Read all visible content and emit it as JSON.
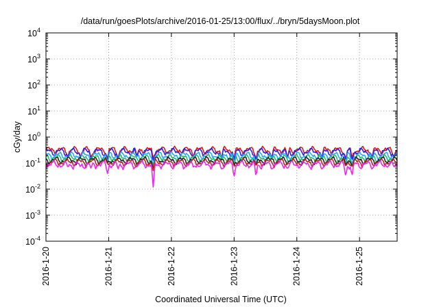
{
  "chart_data": {
    "type": "line",
    "title": "/data/run/goesPlots/archive/2016-01-25/13:00/flux/../bryn/5daysMoon.plot",
    "xlabel": "Coordinated Universal Time (UTC)",
    "ylabel": "cGy/day",
    "yscale": "log",
    "ylim": [
      0.0001,
      10000
    ],
    "xlim": [
      0,
      5.6
    ],
    "grid": true,
    "x_ticks": [
      "2016-1-20",
      "2016-1-21",
      "2016-1-22",
      "2016-1-23",
      "2016-1-24",
      "2016-1-25"
    ],
    "y_ticks": [
      {
        "base": "10",
        "exp": "-4",
        "value": 0.0001
      },
      {
        "base": "10",
        "exp": "-3",
        "value": 0.001
      },
      {
        "base": "10",
        "exp": "-2",
        "value": 0.01
      },
      {
        "base": "10",
        "exp": "-1",
        "value": 0.1
      },
      {
        "base": "10",
        "exp": "0",
        "value": 1
      },
      {
        "base": "10",
        "exp": "1",
        "value": 10
      },
      {
        "base": "10",
        "exp": "2",
        "value": 100
      },
      {
        "base": "10",
        "exp": "3",
        "value": 1000
      },
      {
        "base": "10",
        "exp": "4",
        "value": 10000
      }
    ],
    "series": [
      {
        "color": "#ee1111",
        "base": 0.32
      },
      {
        "color": "#2222ee",
        "base": 0.28
      },
      {
        "color": "#22aaff",
        "base": 0.2
      },
      {
        "color": "#22bb66",
        "base": 0.16
      },
      {
        "color": "#222222",
        "base": 0.13
      },
      {
        "color": "#bb2222",
        "base": 0.11
      },
      {
        "color": "#ee22ee",
        "base": 0.09
      }
    ],
    "dips": [
      {
        "x": 0.35,
        "min": 0.07
      },
      {
        "x": 0.55,
        "min": 0.07
      },
      {
        "x": 0.72,
        "min": 0.06
      },
      {
        "x": 0.98,
        "min": 0.04
      },
      {
        "x": 1.15,
        "min": 0.06
      },
      {
        "x": 1.45,
        "min": 0.07
      },
      {
        "x": 1.71,
        "min": 0.011
      },
      {
        "x": 2.35,
        "min": 0.07
      },
      {
        "x": 2.8,
        "min": 0.06
      },
      {
        "x": 3.0,
        "min": 0.03
      },
      {
        "x": 3.35,
        "min": 0.03
      },
      {
        "x": 3.6,
        "min": 0.06
      },
      {
        "x": 3.85,
        "min": 0.06
      },
      {
        "x": 4.4,
        "min": 0.06
      },
      {
        "x": 4.78,
        "min": 0.03
      },
      {
        "x": 4.88,
        "min": 0.03
      },
      {
        "x": 5.2,
        "min": 0.06
      },
      {
        "x": 5.55,
        "min": 0.07
      }
    ]
  }
}
